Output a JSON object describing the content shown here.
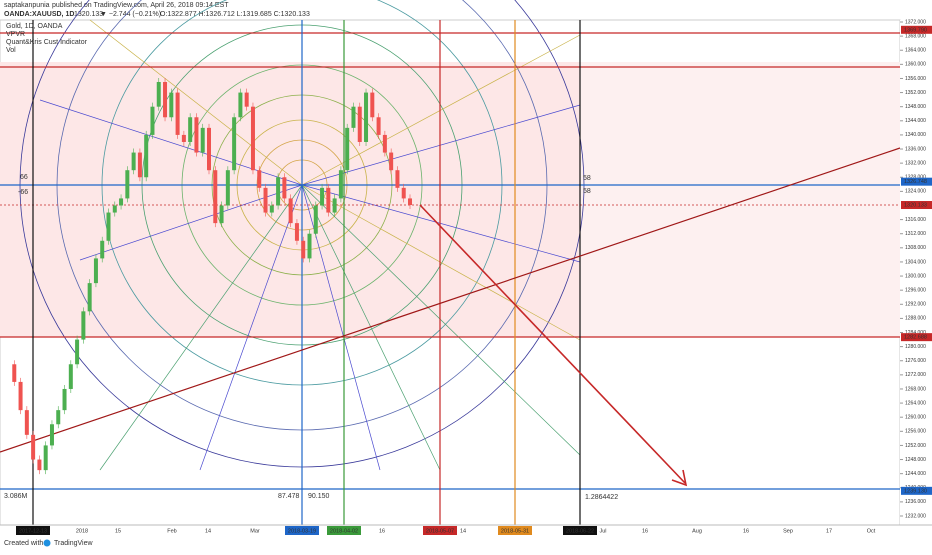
{
  "header": {
    "author": "saptakanpunia",
    "published": "published on TradingView.com, April 26, 2018 09:14 EST",
    "symbol": "OANDA:XAUUSD, 1D",
    "last": "1320.133",
    "change": "▼ −2.744 (−0.21%)",
    "ohlc": "O:1322.877 H:1326.712 L:1319.685 C:1320.133"
  },
  "legend": [
    "Gold, 1D, OANDA",
    "VPVR",
    "Quant&Kris Cust Indicator",
    "Vol"
  ],
  "price_axis": {
    "range": [
      1232,
      1372
    ],
    "ticks": [
      {
        "value": 1372,
        "label": "1372.000"
      },
      {
        "value": 1368,
        "label": "1368.000"
      },
      {
        "value": 1364,
        "label": "1364.000"
      },
      {
        "value": 1360,
        "label": "1360.000"
      },
      {
        "value": 1356,
        "label": "1356.000"
      },
      {
        "value": 1352,
        "label": "1352.000"
      },
      {
        "value": 1348,
        "label": "1348.000"
      },
      {
        "value": 1344,
        "label": "1344.000"
      },
      {
        "value": 1340,
        "label": "1340.000"
      },
      {
        "value": 1336,
        "label": "1336.000"
      },
      {
        "value": 1332,
        "label": "1332.000"
      },
      {
        "value": 1328,
        "label": "1328.000"
      },
      {
        "value": 1324,
        "label": "1324.000"
      },
      {
        "value": 1316,
        "label": "1316.000"
      },
      {
        "value": 1312,
        "label": "1312.000"
      },
      {
        "value": 1308,
        "label": "1308.000"
      },
      {
        "value": 1304,
        "label": "1304.000"
      },
      {
        "value": 1300,
        "label": "1300.000"
      },
      {
        "value": 1296,
        "label": "1296.000"
      },
      {
        "value": 1292,
        "label": "1292.000"
      },
      {
        "value": 1288,
        "label": "1288.000"
      },
      {
        "value": 1284,
        "label": "1284.000"
      },
      {
        "value": 1280,
        "label": "1280.000"
      },
      {
        "value": 1276,
        "label": "1276.000"
      },
      {
        "value": 1272,
        "label": "1272.000"
      },
      {
        "value": 1268,
        "label": "1268.000"
      },
      {
        "value": 1264,
        "label": "1264.000"
      },
      {
        "value": 1260,
        "label": "1260.000"
      },
      {
        "value": 1256,
        "label": "1256.000"
      },
      {
        "value": 1252,
        "label": "1252.000"
      },
      {
        "value": 1248,
        "label": "1248.000"
      },
      {
        "value": 1244,
        "label": "1244.000"
      },
      {
        "value": 1240,
        "label": "1240.000"
      },
      {
        "value": 1236,
        "label": "1236.000"
      },
      {
        "value": 1232,
        "label": "1232.000"
      }
    ],
    "badges": [
      {
        "value": 1369.79,
        "label": "1369.790",
        "color": "#c62828"
      },
      {
        "value": 1326.748,
        "label": "1326.748",
        "color": "#1e66c8"
      },
      {
        "value": 1320.133,
        "label": "1320.133",
        "color": "#c62828"
      },
      {
        "value": 1282.688,
        "label": "1282.688",
        "color": "#c62828"
      },
      {
        "value": 1239.13,
        "label": "1239.130",
        "color": "#1e66c8"
      }
    ]
  },
  "time_axis": [
    "2017-12-13",
    "2018",
    "15",
    "Feb",
    "14",
    "Mar",
    "2018-03-19",
    "2018-04-02",
    "16",
    "2018-05-07",
    "14",
    "2018-05-31",
    "2018-06-22",
    "Jul",
    "16",
    "Aug",
    "16",
    "Sep",
    "17",
    "Oct"
  ],
  "annotations": [
    "66",
    "-66",
    "58",
    "58",
    "3.086M",
    "87.478",
    "90.150",
    "1.2864422"
  ],
  "candles": {
    "up_color": "#4caf50",
    "down_color": "#ef5350",
    "closes": [
      1275,
      1270,
      1262,
      1255,
      1248,
      1245,
      1252,
      1258,
      1262,
      1268,
      1275,
      1282,
      1290,
      1298,
      1305,
      1310,
      1318,
      1320,
      1322,
      1330,
      1335,
      1328,
      1340,
      1348,
      1355,
      1345,
      1352,
      1340,
      1338,
      1345,
      1335,
      1342,
      1330,
      1315,
      1320,
      1330,
      1345,
      1352,
      1348,
      1330,
      1325,
      1318,
      1320,
      1328,
      1322,
      1315,
      1310,
      1305,
      1312,
      1320,
      1325,
      1318,
      1322,
      1330,
      1342,
      1348,
      1338,
      1352,
      1345,
      1340,
      1335,
      1330,
      1325,
      1322,
      1320.133
    ]
  },
  "footer": [
    "Created with",
    "TradingView"
  ]
}
